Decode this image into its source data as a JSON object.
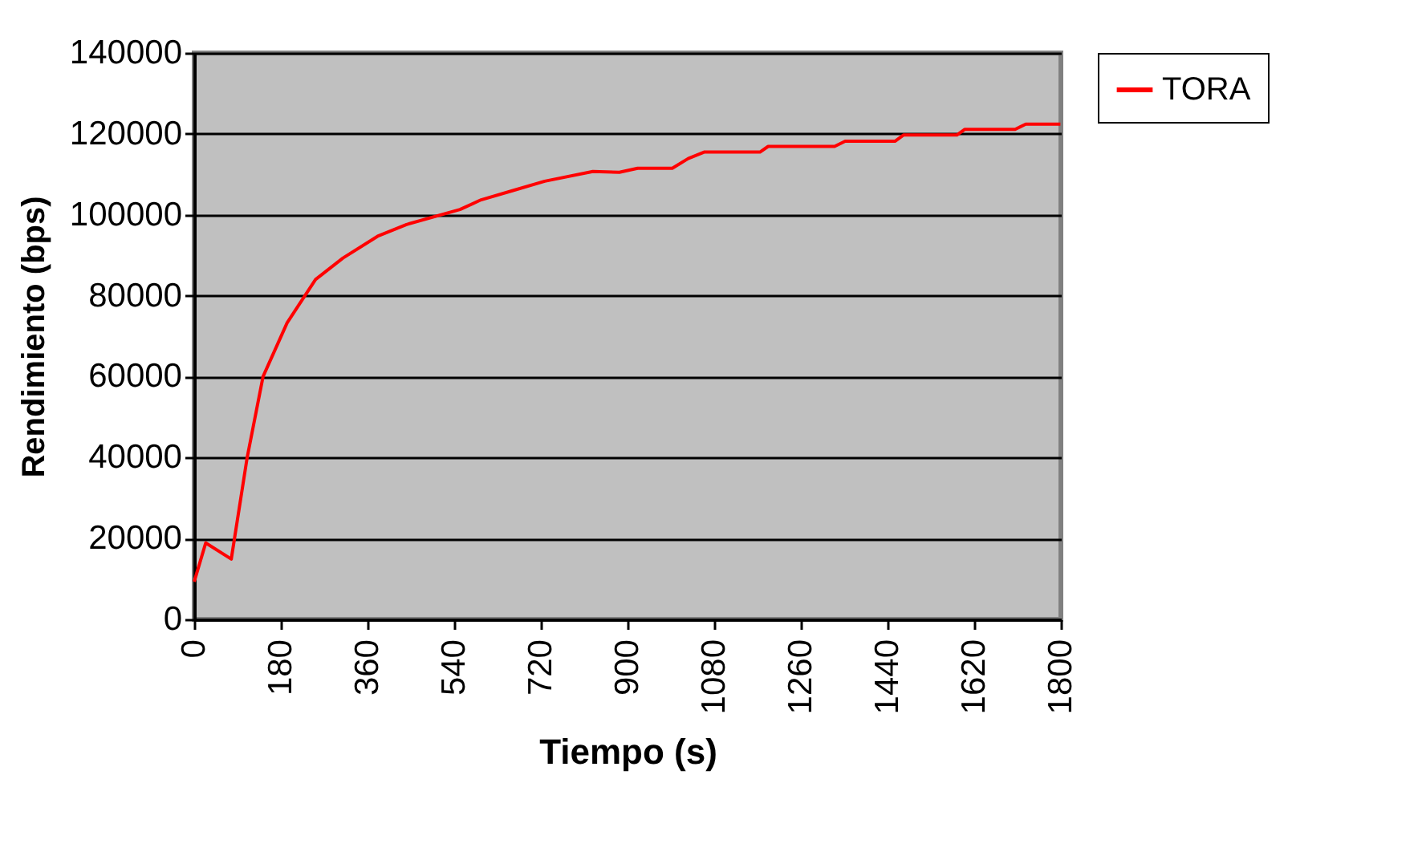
{
  "chart_data": {
    "type": "line",
    "xlabel": "Tiempo (s)",
    "ylabel": "Rendimiento (bps)",
    "xlim": [
      0,
      1800
    ],
    "xticks": [
      0,
      180,
      360,
      540,
      720,
      900,
      1080,
      1260,
      1440,
      1620,
      1800
    ],
    "ylim": [
      0,
      140000
    ],
    "yticks": [
      0,
      20000,
      40000,
      60000,
      80000,
      100000,
      120000,
      140000
    ],
    "grid": "y",
    "legend": "right",
    "marker": "none",
    "line_style": "solid",
    "x": [
      0,
      24,
      77,
      110,
      143,
      193,
      252,
      309,
      381,
      441,
      552,
      596,
      662,
      728,
      828,
      883,
      921,
      993,
      1026,
      1059,
      1175,
      1192,
      1330,
      1352,
      1456,
      1473,
      1584,
      1600,
      1705,
      1727,
      1799
    ],
    "series": [
      {
        "name": "TORA",
        "color": "#ff0000",
        "values": [
          9300,
          18900,
          14900,
          40000,
          60000,
          73300,
          84000,
          89300,
          94700,
          97600,
          101300,
          103700,
          106000,
          108300,
          110700,
          110500,
          111500,
          111500,
          113900,
          115500,
          115500,
          116900,
          116900,
          118200,
          118200,
          119700,
          119700,
          121100,
          121100,
          122400,
          122400
        ]
      }
    ]
  }
}
